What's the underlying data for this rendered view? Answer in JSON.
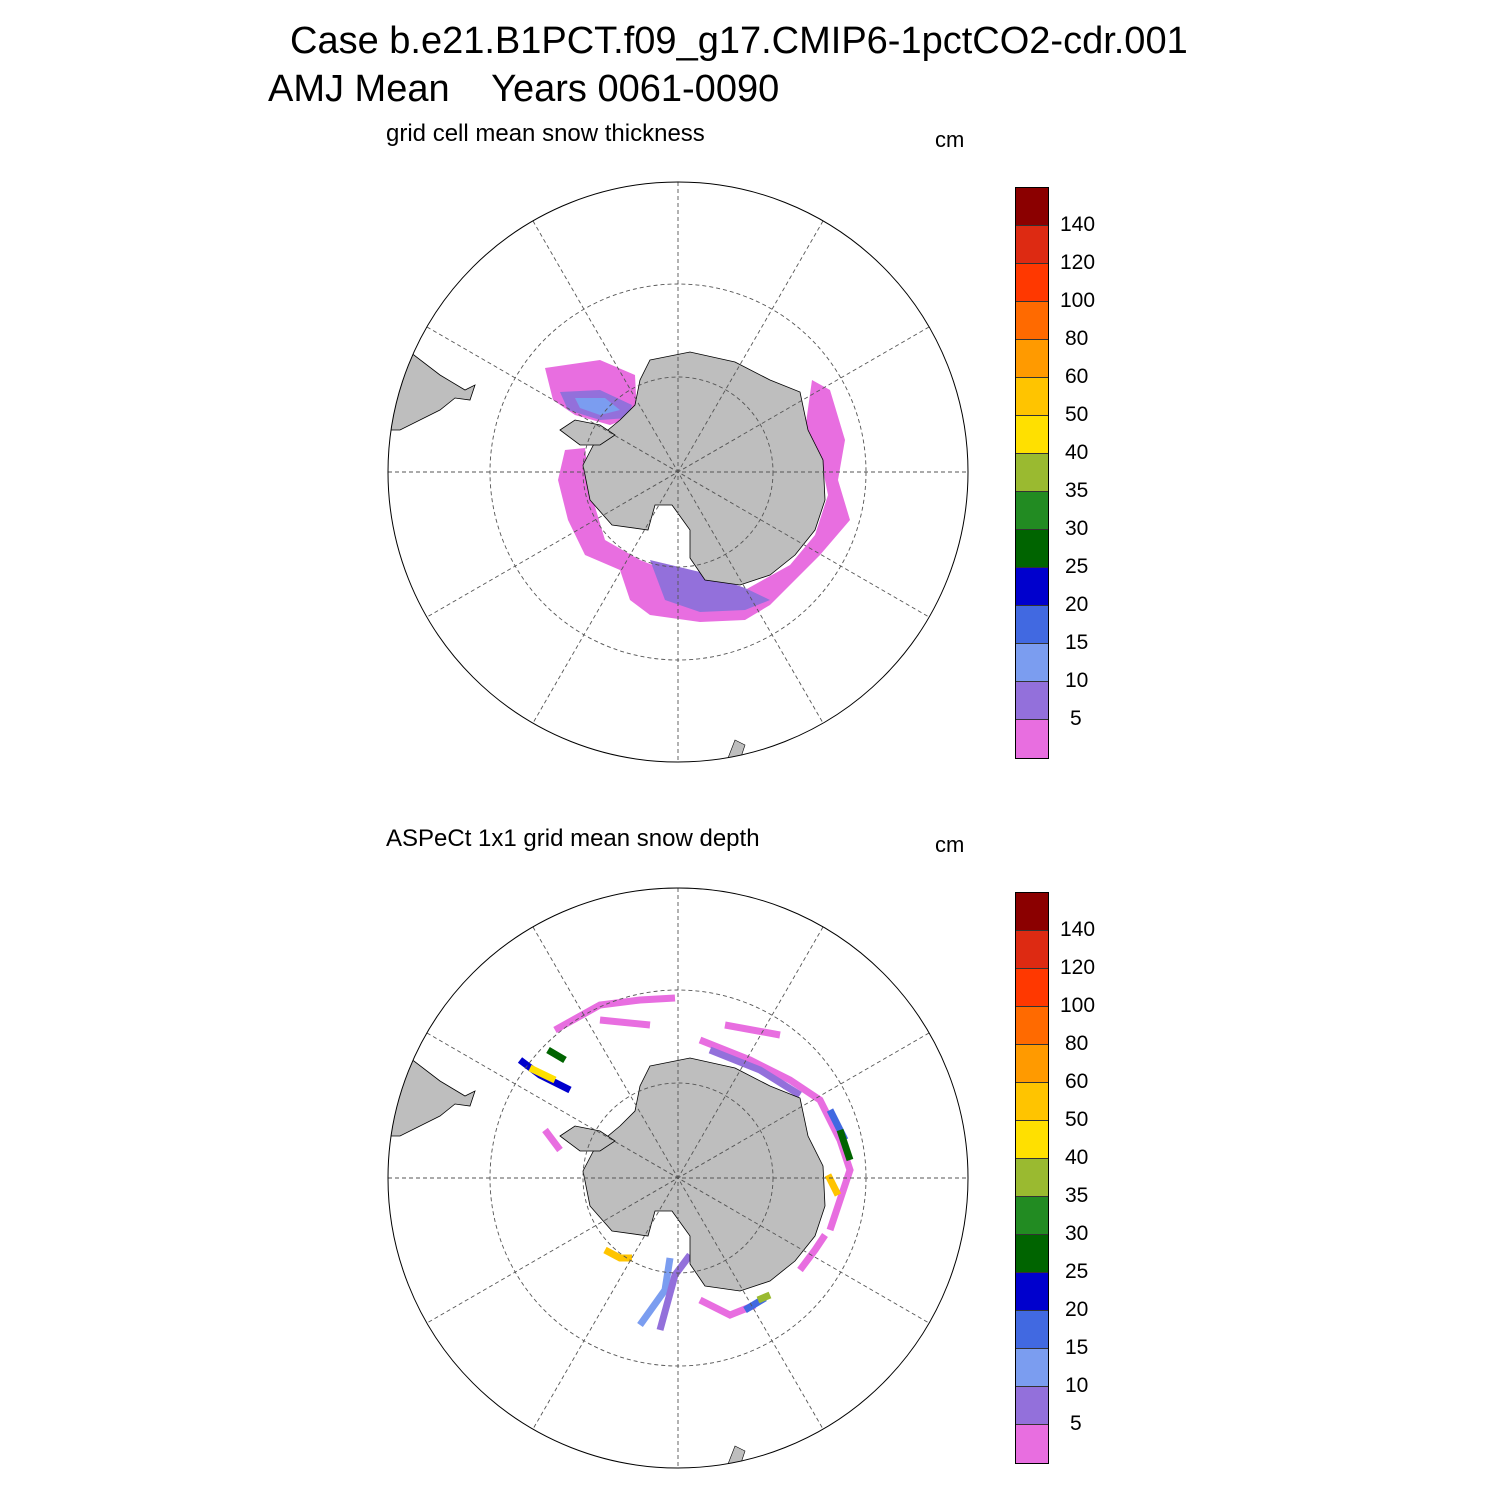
{
  "header": {
    "line1": "Case b.e21.B1PCT.f09_g17.CMIP6-1pctCO2-cdr.001",
    "line2": "AMJ Mean    Years 0061-0090"
  },
  "colors": {
    "land": "#bebebe",
    "bins": [
      "#e86ee0",
      "#9370db",
      "#7b9df0",
      "#4169e1",
      "#0000cd",
      "#006400",
      "#228b22",
      "#9aba30",
      "#ffe000",
      "#ffc400",
      "#ff9a00",
      "#ff6a00",
      "#ff3800",
      "#dd2a12",
      "#8b0000"
    ]
  },
  "colorbar": {
    "labels": [
      "5",
      "10",
      "15",
      "20",
      "25",
      "30",
      "35",
      "40",
      "50",
      "60",
      "80",
      "100",
      "120",
      "140"
    ]
  },
  "panels": [
    {
      "id": "top",
      "title": "grid cell mean snow thickness",
      "units": "cm"
    },
    {
      "id": "bottom",
      "title": "ASPeCt 1x1 grid mean snow depth",
      "units": "cm"
    }
  ]
}
